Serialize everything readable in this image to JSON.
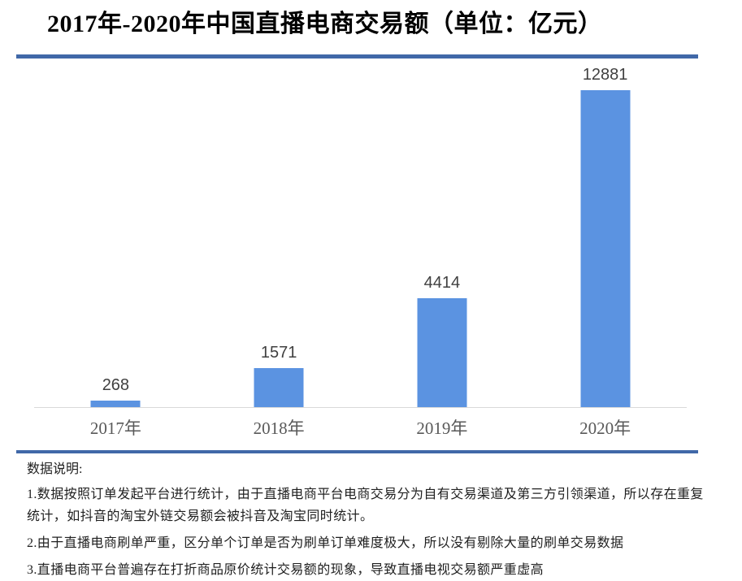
{
  "title": "2017年-2020年中国直播电商交易额（单位：亿元）",
  "colors": {
    "bar": "#5B93E1",
    "divider": "#4068A8",
    "axis": "#D9D9D9",
    "value_label": "#404040",
    "category_label": "#595959"
  },
  "chart_data": {
    "type": "bar",
    "categories": [
      "2017年",
      "2018年",
      "2019年",
      "2020年"
    ],
    "values": [
      268,
      1571,
      4414,
      12881
    ],
    "title": "2017年-2020年中国直播电商交易额（单位：亿元）",
    "xlabel": "",
    "ylabel": "",
    "unit": "亿元",
    "ylim": [
      0,
      12881
    ],
    "grid": false,
    "legend": "none",
    "data_labels": true,
    "bar_color": "#5B93E1"
  },
  "notes": {
    "heading": "数据说明:",
    "items": [
      "1.数据按照订单发起平台进行统计，由于直播电商平台电商交易分为自有交易渠道及第三方引领渠道，所以存在重复统计，如抖音的淘宝外链交易额会被抖音及淘宝同时统计。",
      "2.由于直播电商刷单严重，区分单个订单是否为刷单订单难度极大，所以没有剔除大量的刷单交易数据",
      "3.直播电商平台普遍存在打折商品原价统计交易额的现象，导致直播电视交易额严重虚高"
    ]
  }
}
